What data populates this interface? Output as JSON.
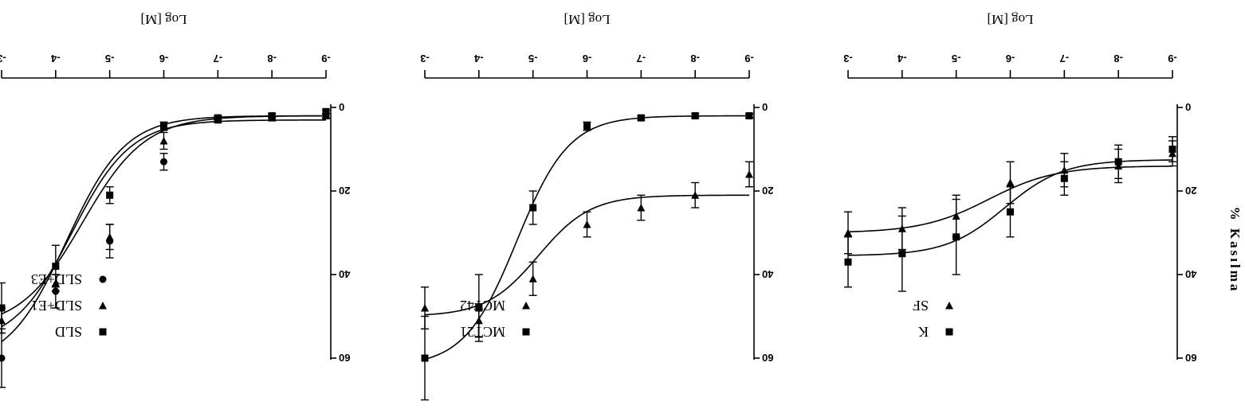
{
  "ylabel": "% Kasılma",
  "chart_data": [
    {
      "type": "scatter",
      "xlabel": "Log [M]",
      "xlim": [
        -9,
        -3
      ],
      "ylim": [
        0,
        60
      ],
      "xticks": [
        "-9",
        "-8",
        "-7",
        "-6",
        "-5",
        "-4",
        "-3"
      ],
      "yticks": [
        "0",
        "20",
        "40",
        "60"
      ],
      "series": [
        {
          "name": "K",
          "marker": "square",
          "x": [
            -9,
            -8,
            -7,
            -6,
            -5,
            -4,
            -3
          ],
          "y": [
            10,
            13,
            17,
            25,
            31,
            35,
            37
          ],
          "err": [
            3,
            4,
            4,
            6,
            9,
            9,
            6
          ],
          "fit": {
            "bottom": 12.5,
            "top": 35.5,
            "logEC50": -5.9,
            "hill": 0.8
          }
        },
        {
          "name": "SF",
          "marker": "triangle",
          "x": [
            -9,
            -8,
            -7,
            -6,
            -5,
            -4,
            -3
          ],
          "y": [
            11,
            14,
            15,
            18,
            26,
            29,
            30
          ],
          "err": [
            3,
            4,
            4,
            5,
            5,
            5,
            5
          ],
          "fit": {
            "bottom": 14,
            "top": 30,
            "logEC50": -5.6,
            "hill": 0.7
          }
        }
      ]
    },
    {
      "type": "scatter",
      "xlabel": "Log [M]",
      "xlim": [
        -9,
        -3
      ],
      "ylim": [
        0,
        60
      ],
      "xticks": [
        "-9",
        "-8",
        "-7",
        "-6",
        "-5",
        "-4",
        "-3"
      ],
      "yticks": [
        "0",
        "20",
        "40",
        "60"
      ],
      "series": [
        {
          "name": "MCT21",
          "marker": "square",
          "x": [
            -9,
            -8,
            -7,
            -6,
            -5,
            -4,
            -3
          ],
          "y": [
            2,
            2,
            2.5,
            4.5,
            24,
            48,
            60
          ],
          "err": [
            0.5,
            0.5,
            0.5,
            1,
            4,
            8,
            10
          ],
          "fit": {
            "bottom": 2,
            "top": 62,
            "logEC50": -4.7,
            "hill": 0.9
          }
        },
        {
          "name": "MCT42",
          "marker": "triangle",
          "x": [
            -9,
            -8,
            -7,
            -6,
            -5,
            -4,
            -3
          ],
          "y": [
            16,
            21,
            24,
            28,
            41,
            51,
            48
          ],
          "err": [
            3,
            3,
            3,
            3,
            4,
            4,
            5
          ],
          "fit": {
            "bottom": 21,
            "top": 50,
            "logEC50": -5.1,
            "hill": 0.9
          }
        }
      ]
    },
    {
      "type": "scatter",
      "xlabel": "Log [M]",
      "xlim": [
        -9,
        -3
      ],
      "ylim": [
        0,
        60
      ],
      "xticks": [
        "-9",
        "-8",
        "-7",
        "-6",
        "-5",
        "-4",
        "-3"
      ],
      "yticks": [
        "0",
        "20",
        "40",
        "60"
      ],
      "series": [
        {
          "name": "SLD",
          "marker": "square",
          "x": [
            -9,
            -8,
            -7,
            -6,
            -5,
            -4,
            -3
          ],
          "y": [
            1,
            2,
            2.5,
            4.5,
            21,
            38,
            48
          ],
          "err": [
            0.5,
            0.5,
            0.5,
            1,
            2,
            5,
            6
          ],
          "fit": {
            "bottom": 2,
            "top": 53,
            "logEC50": -4.5,
            "hill": 0.75
          }
        },
        {
          "name": "SLD+E1",
          "marker": "triangle",
          "x": [
            -9,
            -8,
            -7,
            -6,
            -5,
            -4,
            -3
          ],
          "y": [
            2,
            2.5,
            3,
            8,
            31,
            42,
            51
          ],
          "err": [
            0.5,
            0.5,
            0.5,
            2,
            3,
            2,
            3
          ],
          "fit": {
            "bottom": 3,
            "top": 57,
            "logEC50": -4.3,
            "hill": 0.8
          }
        },
        {
          "name": "SLD+E3",
          "marker": "circle",
          "x": [
            -9,
            -8,
            -7,
            -6,
            -5,
            -4,
            -3
          ],
          "y": [
            2,
            2,
            2.5,
            13,
            32,
            44,
            60
          ],
          "err": [
            0.5,
            0.5,
            0.5,
            2,
            4,
            4,
            7
          ],
          "fit": {
            "bottom": 2,
            "top": 62,
            "logEC50": -4.2,
            "hill": 0.8
          }
        }
      ]
    }
  ]
}
